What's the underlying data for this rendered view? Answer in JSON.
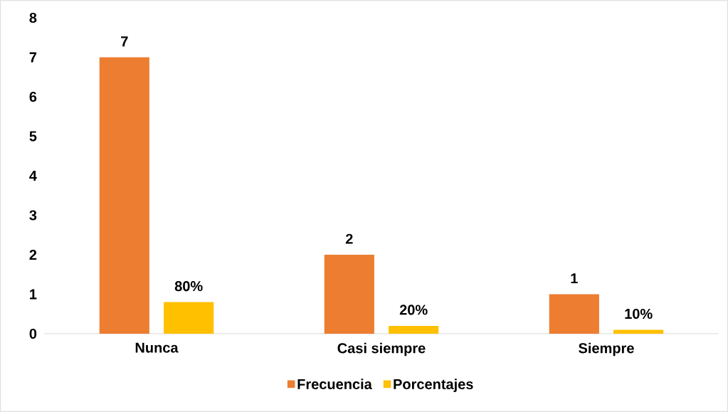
{
  "chart_data": {
    "type": "bar",
    "categories": [
      "Nunca",
      "Casi siempre",
      "Siempre"
    ],
    "series": [
      {
        "name": "Frecuencia",
        "color": "#ed7d31",
        "values": [
          7,
          2,
          1
        ],
        "value_labels": [
          "7",
          "2",
          "1"
        ]
      },
      {
        "name": "Porcentajes",
        "color": "#ffc000",
        "values": [
          0.8,
          0.2,
          0.1
        ],
        "value_labels": [
          "80%",
          "20%",
          "10%"
        ]
      }
    ],
    "ylim": [
      0,
      8
    ],
    "yticks": [
      0,
      1,
      2,
      3,
      4,
      5,
      6,
      7,
      8
    ],
    "grid": false,
    "legend": "bottom"
  }
}
